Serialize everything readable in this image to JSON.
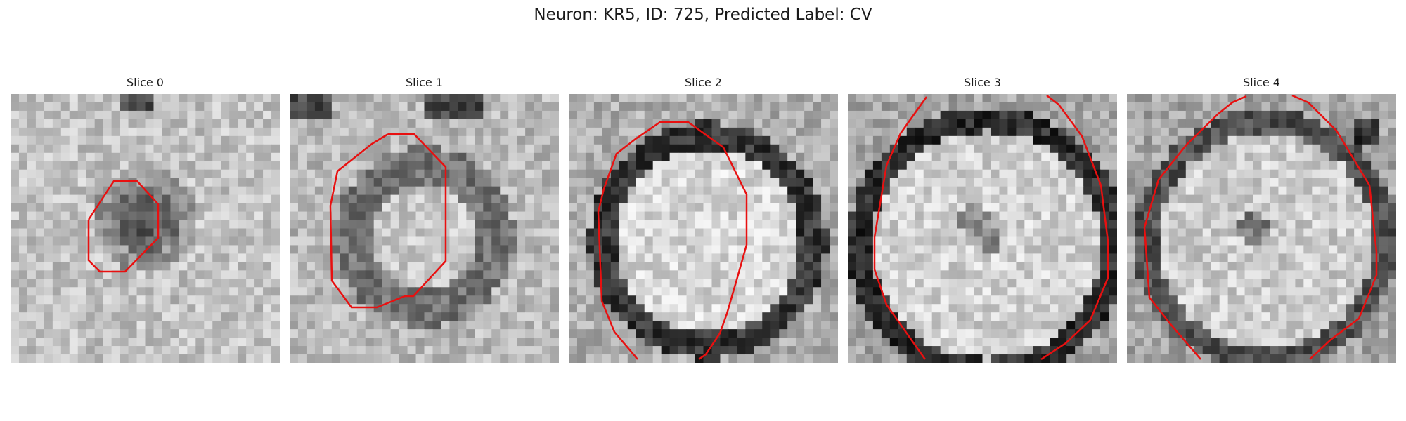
{
  "figure": {
    "title": "Neuron: KR5, ID: 725, Predicted Label: CV",
    "contour_color": "#e81010"
  },
  "panels": [
    {
      "title": "Slice 0",
      "image": "grayscale-em-slice-with-small-dark-spot",
      "overlay": "red-contour"
    },
    {
      "title": "Slice 1",
      "image": "grayscale-em-slice-with-ring-structure",
      "overlay": "red-contour"
    },
    {
      "title": "Slice 2",
      "image": "grayscale-em-slice-with-round-cell-dark-membrane",
      "overlay": "red-contour"
    },
    {
      "title": "Slice 3",
      "image": "grayscale-em-slice-with-large-round-cell",
      "overlay": "red-contour"
    },
    {
      "title": "Slice 4",
      "image": "grayscale-em-slice-with-large-round-cell",
      "overlay": "red-contour"
    }
  ]
}
